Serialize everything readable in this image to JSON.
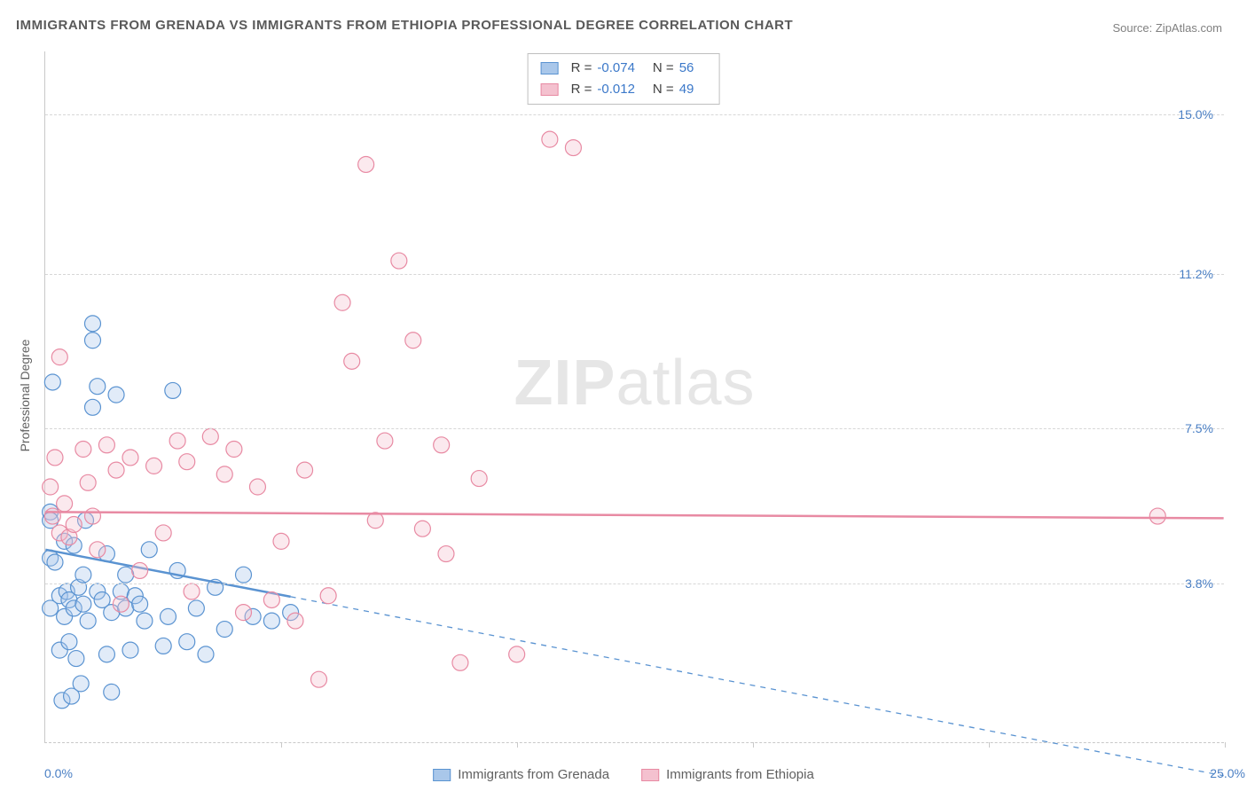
{
  "title": "IMMIGRANTS FROM GRENADA VS IMMIGRANTS FROM ETHIOPIA PROFESSIONAL DEGREE CORRELATION CHART",
  "source_label": "Source: ZipAtlas.com",
  "ylabel": "Professional Degree",
  "watermark_a": "ZIP",
  "watermark_b": "atlas",
  "chart": {
    "type": "scatter",
    "xlim": [
      0,
      25
    ],
    "ylim": [
      0,
      16.5
    ],
    "y_ticks": [
      3.8,
      7.5,
      11.2,
      15.0
    ],
    "y_tick_labels": [
      "3.8%",
      "7.5%",
      "11.2%",
      "15.0%"
    ],
    "x_min_label": "0.0%",
    "x_max_label": "25.0%",
    "x_ticks_at": [
      5,
      10,
      15,
      20,
      25
    ],
    "grid_color": "#d7d7d7",
    "axis_color": "#c9c9c9",
    "background_color": "#ffffff",
    "tick_label_color": "#4a7fc4",
    "marker_radius": 9,
    "marker_stroke_width": 1.2,
    "marker_fill_opacity": 0.35,
    "series": [
      {
        "name": "Immigrants from Grenada",
        "color_stroke": "#5a93d1",
        "color_fill": "#a9c7ea",
        "r_value": "-0.074",
        "n_value": "56",
        "regression": {
          "x1": 0,
          "y1": 4.6,
          "x2": 25,
          "y2": -0.8,
          "solid_until_x": 5.2
        },
        "points": [
          [
            0.1,
            5.5
          ],
          [
            0.1,
            5.3
          ],
          [
            0.1,
            4.4
          ],
          [
            0.1,
            3.2
          ],
          [
            0.15,
            8.6
          ],
          [
            0.2,
            4.3
          ],
          [
            0.3,
            3.5
          ],
          [
            0.3,
            2.2
          ],
          [
            0.35,
            1.0
          ],
          [
            0.4,
            4.8
          ],
          [
            0.4,
            3.0
          ],
          [
            0.45,
            3.6
          ],
          [
            0.5,
            3.4
          ],
          [
            0.5,
            2.4
          ],
          [
            0.55,
            1.1
          ],
          [
            0.6,
            4.7
          ],
          [
            0.6,
            3.2
          ],
          [
            0.65,
            2.0
          ],
          [
            0.7,
            3.7
          ],
          [
            0.75,
            1.4
          ],
          [
            0.8,
            4.0
          ],
          [
            0.8,
            3.3
          ],
          [
            0.85,
            5.3
          ],
          [
            0.9,
            2.9
          ],
          [
            1.0,
            10.0
          ],
          [
            1.0,
            9.6
          ],
          [
            1.0,
            8.0
          ],
          [
            1.1,
            8.5
          ],
          [
            1.1,
            3.6
          ],
          [
            1.2,
            3.4
          ],
          [
            1.3,
            2.1
          ],
          [
            1.3,
            4.5
          ],
          [
            1.4,
            3.1
          ],
          [
            1.4,
            1.2
          ],
          [
            1.5,
            8.3
          ],
          [
            1.6,
            3.6
          ],
          [
            1.7,
            4.0
          ],
          [
            1.7,
            3.2
          ],
          [
            1.8,
            2.2
          ],
          [
            1.9,
            3.5
          ],
          [
            2.0,
            3.3
          ],
          [
            2.1,
            2.9
          ],
          [
            2.2,
            4.6
          ],
          [
            2.5,
            2.3
          ],
          [
            2.6,
            3.0
          ],
          [
            2.7,
            8.4
          ],
          [
            2.8,
            4.1
          ],
          [
            3.0,
            2.4
          ],
          [
            3.2,
            3.2
          ],
          [
            3.4,
            2.1
          ],
          [
            3.6,
            3.7
          ],
          [
            3.8,
            2.7
          ],
          [
            4.2,
            4.0
          ],
          [
            4.4,
            3.0
          ],
          [
            4.8,
            2.9
          ],
          [
            5.2,
            3.1
          ]
        ]
      },
      {
        "name": "Immigrants from Ethiopia",
        "color_stroke": "#e88aa3",
        "color_fill": "#f4c1cf",
        "r_value": "-0.012",
        "n_value": "49",
        "regression": {
          "x1": 0,
          "y1": 5.5,
          "x2": 25,
          "y2": 5.35,
          "solid_until_x": 25
        },
        "points": [
          [
            0.1,
            6.1
          ],
          [
            0.15,
            5.4
          ],
          [
            0.2,
            6.8
          ],
          [
            0.3,
            9.2
          ],
          [
            0.3,
            5.0
          ],
          [
            0.4,
            5.7
          ],
          [
            0.5,
            4.9
          ],
          [
            0.6,
            5.2
          ],
          [
            0.8,
            7.0
          ],
          [
            0.9,
            6.2
          ],
          [
            1.0,
            5.4
          ],
          [
            1.1,
            4.6
          ],
          [
            1.3,
            7.1
          ],
          [
            1.5,
            6.5
          ],
          [
            1.6,
            3.3
          ],
          [
            1.8,
            6.8
          ],
          [
            2.0,
            4.1
          ],
          [
            2.3,
            6.6
          ],
          [
            2.5,
            5.0
          ],
          [
            2.8,
            7.2
          ],
          [
            3.0,
            6.7
          ],
          [
            3.1,
            3.6
          ],
          [
            3.5,
            7.3
          ],
          [
            3.8,
            6.4
          ],
          [
            4.0,
            7.0
          ],
          [
            4.2,
            3.1
          ],
          [
            4.5,
            6.1
          ],
          [
            4.8,
            3.4
          ],
          [
            5.0,
            4.8
          ],
          [
            5.3,
            2.9
          ],
          [
            5.5,
            6.5
          ],
          [
            5.8,
            1.5
          ],
          [
            6.0,
            3.5
          ],
          [
            6.3,
            10.5
          ],
          [
            6.5,
            9.1
          ],
          [
            6.8,
            13.8
          ],
          [
            7.0,
            5.3
          ],
          [
            7.2,
            7.2
          ],
          [
            7.5,
            11.5
          ],
          [
            7.8,
            9.6
          ],
          [
            8.0,
            5.1
          ],
          [
            8.4,
            7.1
          ],
          [
            8.5,
            4.5
          ],
          [
            8.8,
            1.9
          ],
          [
            9.2,
            6.3
          ],
          [
            10.0,
            2.1
          ],
          [
            10.7,
            14.4
          ],
          [
            11.2,
            14.2
          ],
          [
            23.6,
            5.4
          ]
        ]
      }
    ]
  },
  "bottom_legend": {
    "items": [
      "Immigrants from Grenada",
      "Immigrants from Ethiopia"
    ]
  },
  "top_legend": {
    "r_label": "R =",
    "n_label": "N ="
  }
}
